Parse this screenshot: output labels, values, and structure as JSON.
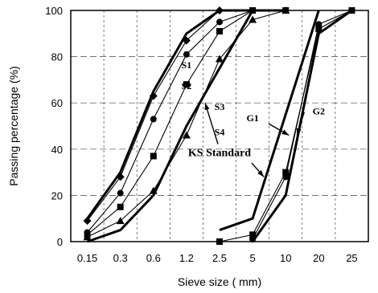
{
  "chart_data": {
    "type": "line",
    "title": "",
    "xlabel": "Sieve size ( mm)",
    "ylabel": "Passing percentage (%)",
    "categories": [
      "0.15",
      "0.3",
      "0.6",
      "1.2",
      "2.5",
      "5",
      "10",
      "20",
      "25"
    ],
    "yticks": [
      "0",
      "20",
      "40",
      "60",
      "80",
      "100"
    ],
    "ylim": [
      0,
      100
    ],
    "grid": "vertical dashed and horizontal dashed",
    "series": [
      {
        "name": "S1",
        "marker": "diamond",
        "values": [
          9,
          28,
          63,
          87,
          100,
          null,
          null,
          null,
          null
        ],
        "color": "#000000"
      },
      {
        "name": "S2",
        "marker": "circle",
        "values": [
          4,
          21,
          53,
          81,
          95,
          100,
          null,
          null,
          null
        ],
        "color": "#000000"
      },
      {
        "name": "S3",
        "marker": "square",
        "values": [
          3,
          15,
          37,
          68,
          91,
          100,
          100,
          null,
          null
        ],
        "color": "#000000"
      },
      {
        "name": "S4",
        "marker": "triangle",
        "values": [
          2,
          9,
          22,
          46,
          79,
          96,
          100,
          null,
          null
        ],
        "color": "#000000"
      },
      {
        "name": "G1",
        "marker": "circle",
        "values": [
          null,
          null,
          null,
          null,
          null,
          1,
          28,
          94,
          100
        ],
        "color": "#000000"
      },
      {
        "name": "G2",
        "marker": "square",
        "values": [
          null,
          null,
          null,
          null,
          0,
          3,
          30,
          92,
          100
        ],
        "color": "#000000"
      }
    ],
    "standard_bands": [
      {
        "name": "fine-lower",
        "values": [
          0,
          5,
          20,
          50,
          75,
          100,
          100,
          null,
          null
        ]
      },
      {
        "name": "fine-upper",
        "values": [
          10,
          30,
          65,
          90,
          100,
          100,
          null,
          null,
          null
        ]
      },
      {
        "name": "coarse-lower",
        "values": [
          null,
          null,
          null,
          null,
          null,
          0,
          20,
          90,
          100
        ]
      },
      {
        "name": "coarse-upper",
        "values": [
          null,
          null,
          null,
          null,
          5,
          10,
          55,
          100,
          null
        ]
      }
    ],
    "annotations": [
      {
        "text": "S1",
        "at": {
          "category": "1.2",
          "value": 75
        }
      },
      {
        "text": "S2",
        "at": {
          "category": "1.2",
          "value": 66
        }
      },
      {
        "text": "S3",
        "at": {
          "category": "2.5",
          "value": 57
        }
      },
      {
        "text": "S4",
        "at": {
          "category": "2.5",
          "value": 46
        }
      },
      {
        "text": "KS Standard",
        "at": {
          "category": "2.5",
          "value": 37
        }
      },
      {
        "text": "G1",
        "at": {
          "category": "5",
          "value": 52
        }
      },
      {
        "text": "G2",
        "at": {
          "category": "20",
          "value": 55
        }
      }
    ]
  }
}
